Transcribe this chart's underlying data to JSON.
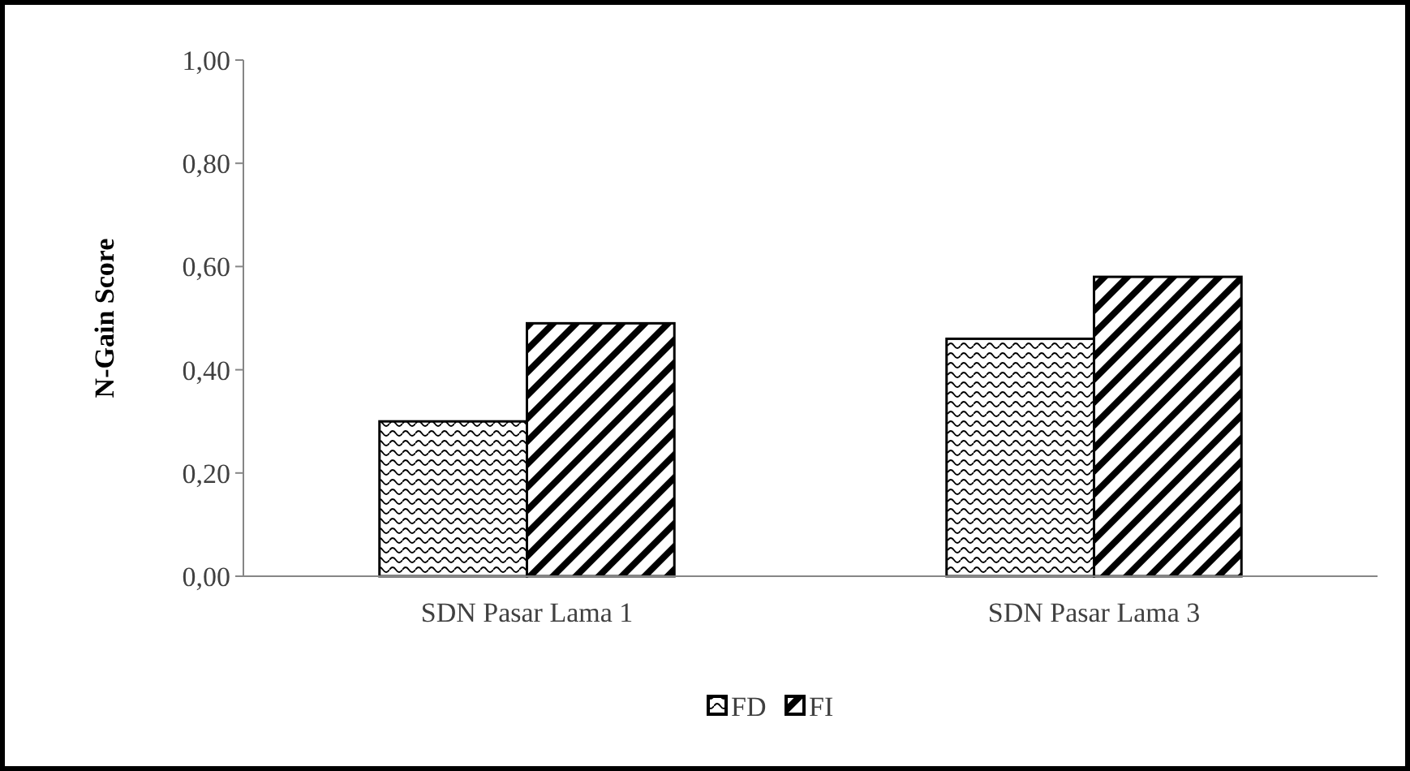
{
  "chart_data": {
    "type": "bar",
    "ylabel": "N-Gain Score",
    "categories": [
      "SDN Pasar Lama 1",
      "SDN Pasar Lama 3"
    ],
    "series": [
      {
        "name": "FD",
        "color": "#000000",
        "values": [
          0.3,
          0.46
        ]
      },
      {
        "name": "FI",
        "color": "#000000",
        "values": [
          0.49,
          0.58
        ]
      }
    ],
    "ylim": [
      0,
      1
    ],
    "yticks": [
      {
        "value": 0,
        "label": "0,00"
      },
      {
        "value": 0.2,
        "label": "0,20"
      },
      {
        "value": 0.4,
        "label": "0,40"
      },
      {
        "value": 0.6,
        "label": "0,60"
      },
      {
        "value": 0.8,
        "label": "0,80"
      },
      {
        "value": 1,
        "label": "1,00"
      }
    ],
    "grid": false,
    "legend": "bottom"
  }
}
